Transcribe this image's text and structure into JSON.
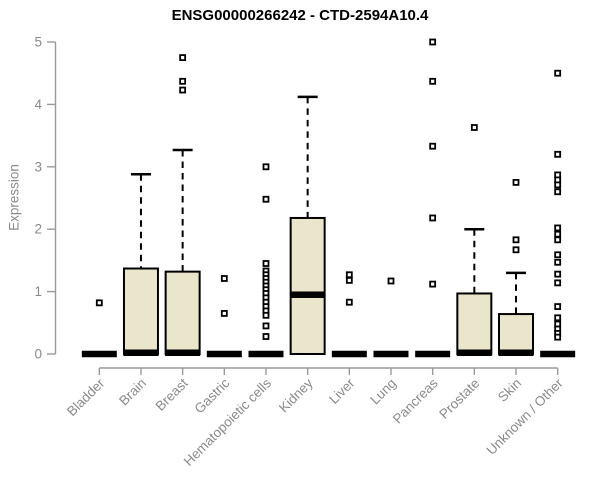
{
  "chart_data": {
    "type": "boxplot",
    "title": "ENSG00000266242 - CTD-2594A10.4",
    "ylabel": "Expression",
    "xlabel": "",
    "ylim": [
      0,
      5
    ],
    "yticks": [
      0,
      1,
      2,
      3,
      4,
      5
    ],
    "grid": false,
    "legend": "none",
    "categories": [
      "Bladder",
      "Brain",
      "Breast",
      "Gastric",
      "Hematopoietic cells",
      "Kidney",
      "Liver",
      "Lung",
      "Pancreas",
      "Prostate",
      "Skin",
      "Unknown / Other"
    ],
    "series": [
      {
        "category": "Bladder",
        "q1": 0,
        "median": 0,
        "q3": 0,
        "whisker_low": 0,
        "whisker_high": 0,
        "outliers": [
          0.82
        ]
      },
      {
        "category": "Brain",
        "q1": 0,
        "median": 0.02,
        "q3": 1.37,
        "whisker_low": 0,
        "whisker_high": 2.88,
        "outliers": []
      },
      {
        "category": "Breast",
        "q1": 0,
        "median": 0.02,
        "q3": 1.32,
        "whisker_low": 0,
        "whisker_high": 3.27,
        "outliers": [
          4.75,
          4.37,
          4.23
        ]
      },
      {
        "category": "Gastric",
        "q1": 0,
        "median": 0,
        "q3": 0,
        "whisker_low": 0,
        "whisker_high": 0,
        "outliers": [
          1.21,
          0.65
        ]
      },
      {
        "category": "Hematopoietic cells",
        "q1": 0,
        "median": 0,
        "q3": 0,
        "whisker_low": 0,
        "whisker_high": 0,
        "outliers": [
          3.0,
          2.48,
          1.45,
          1.33,
          1.27,
          1.21,
          1.15,
          1.09,
          1.03,
          0.97,
          0.9,
          0.83,
          0.76,
          0.69,
          0.62,
          0.45,
          0.28
        ]
      },
      {
        "category": "Kidney",
        "q1": 0,
        "median": 0.95,
        "q3": 2.18,
        "whisker_low": 0,
        "whisker_high": 4.12,
        "outliers": []
      },
      {
        "category": "Liver",
        "q1": 0,
        "median": 0,
        "q3": 0,
        "whisker_low": 0,
        "whisker_high": 0,
        "outliers": [
          1.27,
          1.18,
          0.83
        ]
      },
      {
        "category": "Lung",
        "q1": 0,
        "median": 0,
        "q3": 0,
        "whisker_low": 0,
        "whisker_high": 0,
        "outliers": [
          1.17
        ]
      },
      {
        "category": "Pancreas",
        "q1": 0,
        "median": 0,
        "q3": 0,
        "whisker_low": 0,
        "whisker_high": 0,
        "outliers": [
          5.0,
          4.37,
          3.33,
          2.18,
          1.12
        ]
      },
      {
        "category": "Prostate",
        "q1": 0,
        "median": 0.02,
        "q3": 0.97,
        "whisker_low": 0,
        "whisker_high": 2.0,
        "outliers": [
          3.63
        ]
      },
      {
        "category": "Skin",
        "q1": 0,
        "median": 0.02,
        "q3": 0.64,
        "whisker_low": 0,
        "whisker_high": 1.3,
        "outliers": [
          2.75,
          1.83,
          1.67
        ]
      },
      {
        "category": "Unknown / Other",
        "q1": 0,
        "median": 0,
        "q3": 0,
        "whisker_low": 0,
        "whisker_high": 0,
        "outliers": [
          4.5,
          3.2,
          2.87,
          2.79,
          2.71,
          2.6,
          2.02,
          1.92,
          1.83,
          1.59,
          1.47,
          1.28,
          1.14,
          0.76,
          0.58,
          0.48,
          0.4,
          0.33,
          0.27
        ]
      }
    ],
    "colors": {
      "box_fill": "#EAE6CB",
      "box_stroke": "#000000",
      "median": "#000000",
      "whisker": "#000000",
      "outlier_stroke": "#000000",
      "outlier_fill": "#FFFFFF",
      "axis_line": "#9A9A9A",
      "axis_text": "#8A8A8A",
      "title_text": "#000000",
      "background": "#FFFFFF"
    }
  }
}
